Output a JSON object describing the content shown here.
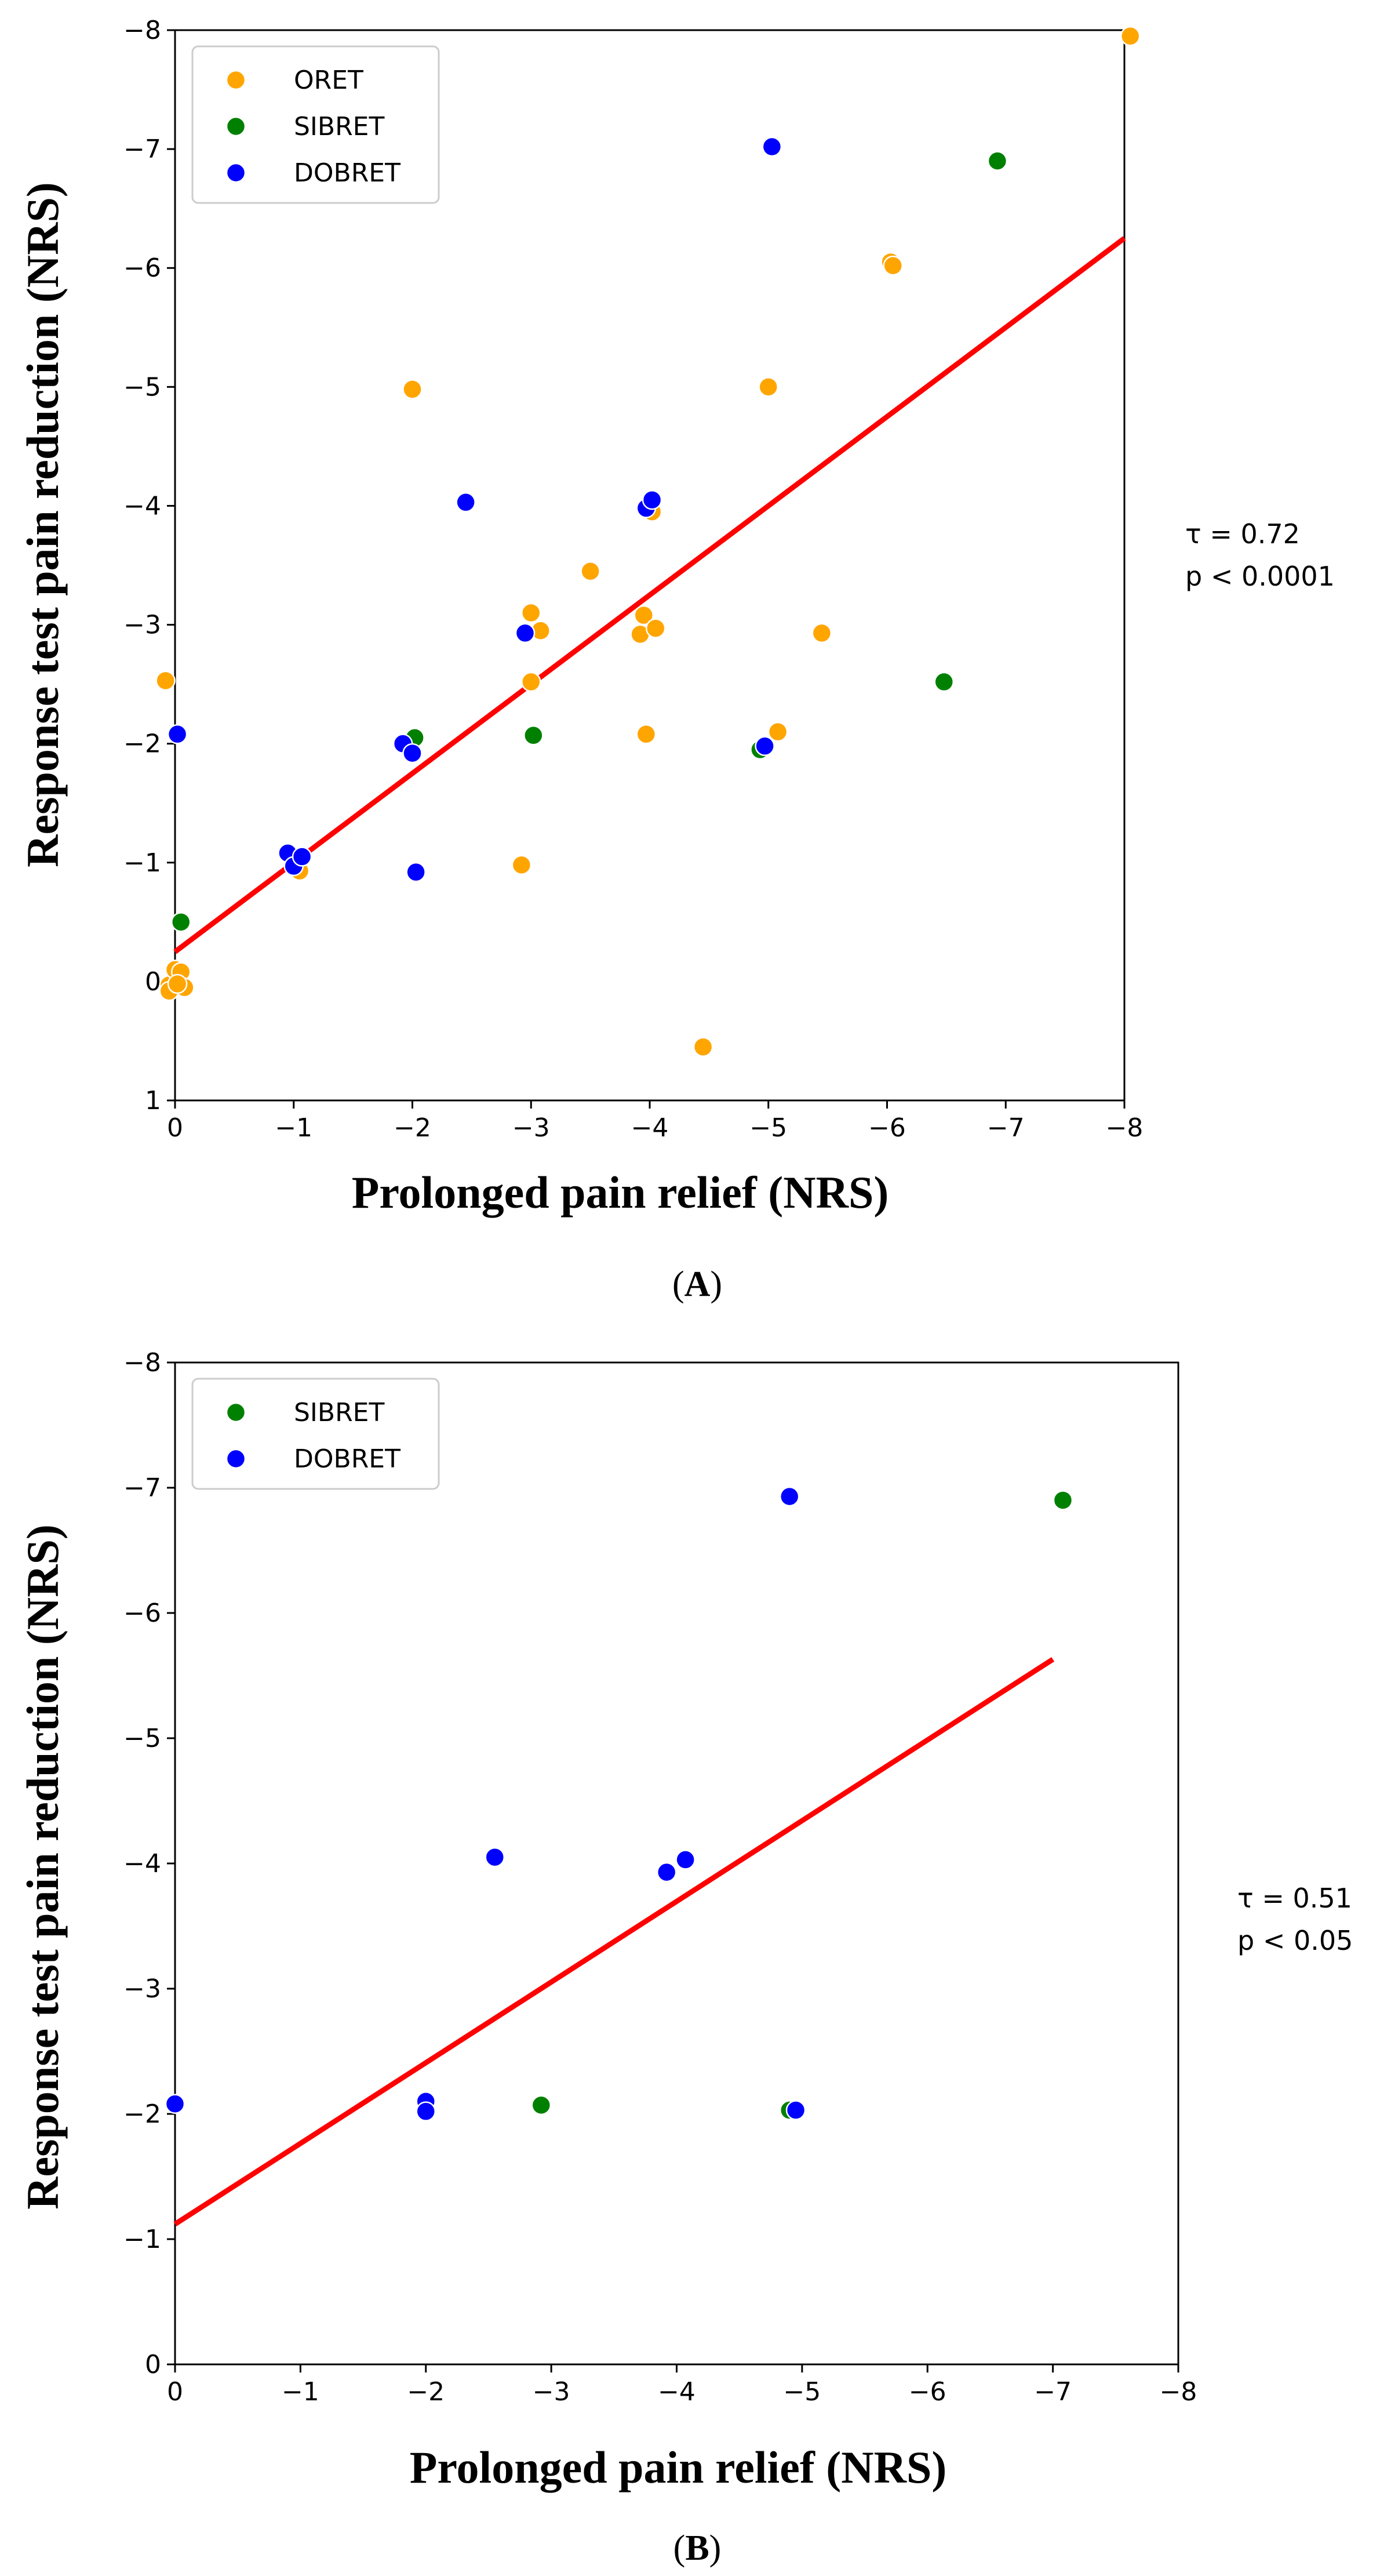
{
  "chart_data": [
    {
      "type": "scatter",
      "panel_label": "A",
      "xlabel": "Prolonged pain relief (NRS)",
      "ylabel": "Response test pain reduction (NRS)",
      "xlim": [
        0,
        -8
      ],
      "ylim": [
        1,
        -8
      ],
      "xticks": [
        0,
        -1,
        -2,
        -3,
        -4,
        -5,
        -6,
        -7,
        -8
      ],
      "yticks": [
        1,
        0,
        -1,
        -2,
        -3,
        -4,
        -5,
        -6,
        -7,
        -8
      ],
      "xtick_labels": [
        "0",
        "−1",
        "−2",
        "−3",
        "−4",
        "−5",
        "−6",
        "−7",
        "−8"
      ],
      "ytick_labels": [
        "1",
        "0",
        "−1",
        "−2",
        "−3",
        "−4",
        "−5",
        "−6",
        "−7",
        "−8"
      ],
      "legend_position": "top-left",
      "stats": {
        "tau": "τ = 0.72",
        "p": "p < 0.0001"
      },
      "fit_line": {
        "x": [
          0,
          -8
        ],
        "y": [
          -0.25,
          -6.25
        ]
      },
      "series": [
        {
          "name": "ORET",
          "color": "#ffa500",
          "points": [
            [
              -8.05,
              -7.95
            ],
            [
              -6.03,
              -6.05
            ],
            [
              -6.05,
              -6.02
            ],
            [
              -5.0,
              -5.0
            ],
            [
              -2.0,
              -4.98
            ],
            [
              -4.02,
              -3.95
            ],
            [
              -3.5,
              -3.45
            ],
            [
              -3.0,
              -3.1
            ],
            [
              -3.08,
              -2.95
            ],
            [
              -3.0,
              -2.52
            ],
            [
              -3.95,
              -3.08
            ],
            [
              -3.92,
              -2.92
            ],
            [
              -4.05,
              -2.97
            ],
            [
              -5.45,
              -2.93
            ],
            [
              -3.97,
              -2.08
            ],
            [
              -5.08,
              -2.1
            ],
            [
              -2.92,
              -0.98
            ],
            [
              -1.05,
              -0.93
            ],
            [
              -4.45,
              0.55
            ],
            [
              0.08,
              -2.53
            ],
            [
              0.05,
              0.03
            ],
            [
              0.0,
              -0.1
            ],
            [
              -0.05,
              -0.08
            ],
            [
              -0.08,
              0.05
            ],
            [
              0.05,
              0.08
            ],
            [
              -0.02,
              0.02
            ]
          ]
        },
        {
          "name": "SIBRET",
          "color": "#008000",
          "points": [
            [
              -6.93,
              -6.9
            ],
            [
              -6.48,
              -2.52
            ],
            [
              -3.02,
              -2.07
            ],
            [
              -2.02,
              -2.05
            ],
            [
              -4.93,
              -1.95
            ],
            [
              -0.05,
              -0.5
            ]
          ]
        },
        {
          "name": "DOBRET",
          "color": "#0000ff",
          "points": [
            [
              -5.03,
              -7.02
            ],
            [
              -2.45,
              -4.03
            ],
            [
              -3.97,
              -3.98
            ],
            [
              -4.02,
              -4.05
            ],
            [
              -2.95,
              -2.93
            ],
            [
              -0.02,
              -2.08
            ],
            [
              -1.92,
              -2.0
            ],
            [
              -2.0,
              -1.92
            ],
            [
              -4.97,
              -1.98
            ],
            [
              -0.95,
              -1.08
            ],
            [
              -1.0,
              -0.97
            ],
            [
              -1.07,
              -1.05
            ],
            [
              -2.03,
              -0.92
            ]
          ]
        }
      ]
    },
    {
      "type": "scatter",
      "panel_label": "B",
      "xlabel": "Prolonged pain relief (NRS)",
      "ylabel": "Response test pain reduction (NRS)",
      "xlim": [
        0,
        -8
      ],
      "ylim": [
        0,
        -8
      ],
      "xticks": [
        0,
        -1,
        -2,
        -3,
        -4,
        -5,
        -6,
        -7,
        -8
      ],
      "yticks": [
        0,
        -1,
        -2,
        -3,
        -4,
        -5,
        -6,
        -7,
        -8
      ],
      "xtick_labels": [
        "0",
        "−1",
        "−2",
        "−3",
        "−4",
        "−5",
        "−6",
        "−7",
        "−8"
      ],
      "ytick_labels": [
        "0",
        "−1",
        "−2",
        "−3",
        "−4",
        "−5",
        "−6",
        "−7",
        "−8"
      ],
      "legend_position": "top-left",
      "stats": {
        "tau": "τ = 0.51",
        "p": "p < 0.05"
      },
      "fit_line": {
        "x": [
          0,
          -7.0
        ],
        "y": [
          -1.12,
          -5.63
        ]
      },
      "series": [
        {
          "name": "SIBRET",
          "color": "#008000",
          "points": [
            [
              -7.08,
              -6.9
            ],
            [
              -2.92,
              -2.07
            ],
            [
              -4.9,
              -2.03
            ]
          ]
        },
        {
          "name": "DOBRET",
          "color": "#0000ff",
          "points": [
            [
              -4.9,
              -6.93
            ],
            [
              -2.55,
              -4.05
            ],
            [
              -3.92,
              -3.93
            ],
            [
              -4.07,
              -4.03
            ],
            [
              0.0,
              -2.08
            ],
            [
              -2.0,
              -2.1
            ],
            [
              -2.0,
              -2.02
            ],
            [
              -4.95,
              -2.03
            ]
          ]
        }
      ]
    }
  ]
}
